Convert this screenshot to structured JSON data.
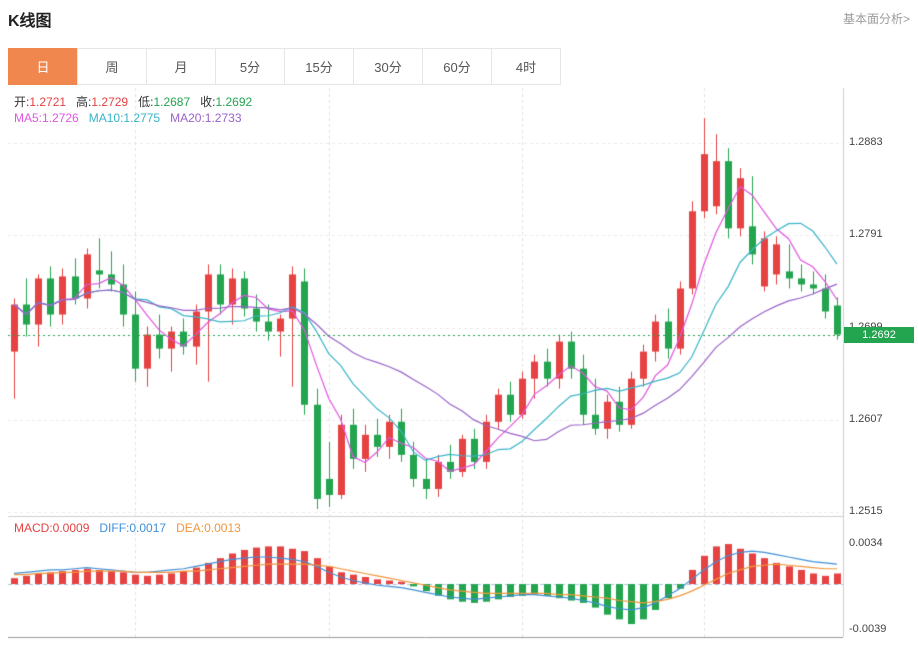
{
  "header": {
    "title": "K线图",
    "link": "基本面分析>"
  },
  "tabs": {
    "active_index": 0,
    "items": [
      {
        "label": "日",
        "name": "tab-day"
      },
      {
        "label": "周",
        "name": "tab-week"
      },
      {
        "label": "月",
        "name": "tab-month"
      },
      {
        "label": "5分",
        "name": "tab-5min"
      },
      {
        "label": "15分",
        "name": "tab-15min"
      },
      {
        "label": "30分",
        "name": "tab-30min"
      },
      {
        "label": "60分",
        "name": "tab-60min"
      },
      {
        "label": "4时",
        "name": "tab-4hour"
      }
    ]
  },
  "info": {
    "open_label": "开:",
    "open": "1.2721",
    "high_label": "高:",
    "high": "1.2729",
    "low_label": "低:",
    "low": "1.2687",
    "close_label": "收:",
    "close": "1.2692",
    "ma5_label": "MA5:",
    "ma5": "1.2726",
    "ma10_label": "MA10:",
    "ma10": "1.2775",
    "ma20_label": "MA20:",
    "ma20": "1.2733",
    "macd_label": "MACD:",
    "macd": "0.0009",
    "diff_label": "DIFF:",
    "diff": "0.0017",
    "dea_label": "DEA:",
    "dea": "0.0013"
  },
  "colors": {
    "up": "#e64242",
    "down": "#23a44f",
    "ma5": "#e056e0",
    "ma10": "#3ab4c8",
    "ma20": "#9a63c8",
    "diff": "#4090d8",
    "dea": "#f0973c",
    "tab_active": "#f0874f",
    "grid": "#eaeaea",
    "vgrid": "#e2e2e2",
    "zero_line": "#a9c9e6",
    "border": "#cfcfcf"
  },
  "chart_data": [
    {
      "type": "candlestick",
      "title": "K线图",
      "period": "日",
      "price_axis": {
        "min": 1.2511,
        "max": 1.2938,
        "ticks": [
          1.2883,
          1.2791,
          1.2699,
          1.2607,
          1.2515
        ],
        "last_price": 1.2692,
        "last_price_label": "1.2692"
      },
      "ohlc_display": {
        "open": 1.2721,
        "high": 1.2729,
        "low": 1.2687,
        "close": 1.2692
      },
      "ma_display": {
        "MA5": 1.2726,
        "MA10": 1.2775,
        "MA20": 1.2733
      },
      "ma_overlays": [
        {
          "name": "MA5",
          "period": 5,
          "color_key": "ma5"
        },
        {
          "name": "MA10",
          "period": 10,
          "color_key": "ma10"
        },
        {
          "name": "MA20",
          "period": 20,
          "color_key": "ma20"
        }
      ],
      "grid_indices": [
        10,
        26,
        42,
        57
      ],
      "candles": [
        [
          1.2675,
          1.2728,
          1.2628,
          1.2722
        ],
        [
          1.2722,
          1.2748,
          1.269,
          1.2702
        ],
        [
          1.2702,
          1.2752,
          1.268,
          1.2748
        ],
        [
          1.2748,
          1.276,
          1.27,
          1.2712
        ],
        [
          1.2712,
          1.2758,
          1.2702,
          1.275
        ],
        [
          1.275,
          1.2768,
          1.2722,
          1.2728
        ],
        [
          1.2728,
          1.2778,
          1.2718,
          1.2772
        ],
        [
          1.2756,
          1.2788,
          1.2738,
          1.2752
        ],
        [
          1.2752,
          1.2775,
          1.2735,
          1.2742
        ],
        [
          1.2742,
          1.2762,
          1.27,
          1.2712
        ],
        [
          1.2712,
          1.2735,
          1.2645,
          1.2658
        ],
        [
          1.2658,
          1.27,
          1.264,
          1.2692
        ],
        [
          1.2692,
          1.2712,
          1.2668,
          1.2678
        ],
        [
          1.2678,
          1.27,
          1.2655,
          1.2695
        ],
        [
          1.2695,
          1.2708,
          1.2672,
          1.268
        ],
        [
          1.268,
          1.2722,
          1.2662,
          1.2715
        ],
        [
          1.2715,
          1.2762,
          1.2645,
          1.2752
        ],
        [
          1.2752,
          1.2762,
          1.2712,
          1.2722
        ],
        [
          1.2722,
          1.2758,
          1.2702,
          1.2748
        ],
        [
          1.2748,
          1.2755,
          1.271,
          1.2718
        ],
        [
          1.2718,
          1.2732,
          1.2695,
          1.2705
        ],
        [
          1.2705,
          1.2722,
          1.2686,
          1.2695
        ],
        [
          1.2695,
          1.2712,
          1.267,
          1.2708
        ],
        [
          1.2708,
          1.276,
          1.264,
          1.2752
        ],
        [
          1.2745,
          1.2758,
          1.2612,
          1.2622
        ],
        [
          1.2622,
          1.2638,
          1.2518,
          1.2528
        ],
        [
          1.2548,
          1.2585,
          1.252,
          1.2532
        ],
        [
          1.2532,
          1.2612,
          1.2528,
          1.2602
        ],
        [
          1.2602,
          1.2618,
          1.2558,
          1.2568
        ],
        [
          1.2568,
          1.2602,
          1.2555,
          1.2592
        ],
        [
          1.2592,
          1.2608,
          1.257,
          1.258
        ],
        [
          1.258,
          1.2612,
          1.2568,
          1.2605
        ],
        [
          1.2605,
          1.2618,
          1.2565,
          1.2572
        ],
        [
          1.2572,
          1.2585,
          1.254,
          1.2548
        ],
        [
          1.2548,
          1.2568,
          1.2528,
          1.2538
        ],
        [
          1.2538,
          1.2572,
          1.253,
          1.2565
        ],
        [
          1.2565,
          1.2582,
          1.2548,
          1.2555
        ],
        [
          1.2555,
          1.2592,
          1.255,
          1.2588
        ],
        [
          1.2588,
          1.2598,
          1.2558,
          1.2565
        ],
        [
          1.2565,
          1.2612,
          1.2558,
          1.2605
        ],
        [
          1.2605,
          1.2638,
          1.2598,
          1.2632
        ],
        [
          1.2632,
          1.2645,
          1.2605,
          1.2612
        ],
        [
          1.2612,
          1.2655,
          1.2608,
          1.2648
        ],
        [
          1.2648,
          1.2672,
          1.2628,
          1.2665
        ],
        [
          1.2665,
          1.2678,
          1.264,
          1.2648
        ],
        [
          1.2648,
          1.2692,
          1.2638,
          1.2685
        ],
        [
          1.2685,
          1.2695,
          1.2648,
          1.2658
        ],
        [
          1.2658,
          1.2672,
          1.2602,
          1.2612
        ],
        [
          1.2612,
          1.2648,
          1.2592,
          1.2598
        ],
        [
          1.2598,
          1.2632,
          1.2588,
          1.2625
        ],
        [
          1.2625,
          1.264,
          1.2595,
          1.2602
        ],
        [
          1.2602,
          1.2655,
          1.2598,
          1.2648
        ],
        [
          1.2648,
          1.2682,
          1.264,
          1.2675
        ],
        [
          1.2675,
          1.2712,
          1.2665,
          1.2705
        ],
        [
          1.2705,
          1.2718,
          1.2668,
          1.2678
        ],
        [
          1.2678,
          1.2745,
          1.2672,
          1.2738
        ],
        [
          1.2738,
          1.2825,
          1.2732,
          1.2815
        ],
        [
          1.2815,
          1.2908,
          1.2808,
          1.2872
        ],
        [
          1.282,
          1.2892,
          1.2812,
          1.2865
        ],
        [
          1.2865,
          1.2878,
          1.2788,
          1.2798
        ],
        [
          1.2798,
          1.2858,
          1.279,
          1.2848
        ],
        [
          1.28,
          1.285,
          1.2762,
          1.2772
        ],
        [
          1.274,
          1.2795,
          1.2735,
          1.2788
        ],
        [
          1.2752,
          1.279,
          1.2742,
          1.2782
        ],
        [
          1.2755,
          1.2782,
          1.2738,
          1.2748
        ],
        [
          1.2748,
          1.2762,
          1.2735,
          1.2742
        ],
        [
          1.2742,
          1.2755,
          1.2732,
          1.2738
        ],
        [
          1.2738,
          1.2752,
          1.2708,
          1.2715
        ],
        [
          1.2721,
          1.2729,
          1.2687,
          1.2692
        ]
      ]
    },
    {
      "type": "bar",
      "name": "MACD",
      "axis": {
        "min": -0.0045,
        "max": 0.0057,
        "ticks": [
          0.0034,
          -0.0039
        ]
      },
      "display": {
        "MACD": 0.0009,
        "DIFF": 0.0017,
        "DEA": 0.0013
      },
      "hist": [
        0.0005,
        0.0007,
        0.0009,
        0.001,
        0.0011,
        0.0012,
        0.0013,
        0.0012,
        0.0011,
        0.001,
        0.0008,
        0.0007,
        0.0008,
        0.0009,
        0.0011,
        0.0014,
        0.0018,
        0.0022,
        0.0026,
        0.0029,
        0.0031,
        0.0032,
        0.0032,
        0.003,
        0.0028,
        0.0022,
        0.0015,
        0.001,
        0.0008,
        0.0006,
        0.0004,
        0.0003,
        0.0002,
        -0.0002,
        -0.0006,
        -0.001,
        -0.0013,
        -0.0015,
        -0.0016,
        -0.0015,
        -0.0013,
        -0.0011,
        -0.001,
        -0.0009,
        -0.001,
        -0.0012,
        -0.0014,
        -0.0016,
        -0.002,
        -0.0026,
        -0.003,
        -0.0034,
        -0.003,
        -0.0022,
        -0.0012,
        -0.0004,
        0.0012,
        0.0024,
        0.0032,
        0.0034,
        0.003,
        0.0026,
        0.0022,
        0.0018,
        0.0015,
        0.0012,
        0.0009,
        0.0007,
        0.0009
      ],
      "series": [
        {
          "name": "DIFF",
          "color_key": "diff",
          "values": [
            0.0009,
            0.001,
            0.0011,
            0.0012,
            0.0012,
            0.0013,
            0.0014,
            0.0013,
            0.0012,
            0.0011,
            0.001,
            0.001,
            0.0011,
            0.0012,
            0.0013,
            0.0015,
            0.0017,
            0.0019,
            0.0021,
            0.0022,
            0.0023,
            0.0023,
            0.0022,
            0.0021,
            0.0019,
            0.0015,
            0.001,
            0.0006,
            0.0003,
            0.0001,
            -0.0001,
            -0.0002,
            -0.0003,
            -0.0005,
            -0.0007,
            -0.0009,
            -0.0011,
            -0.0012,
            -0.0013,
            -0.0012,
            -0.0011,
            -0.001,
            -0.0009,
            -0.0009,
            -0.001,
            -0.0011,
            -0.0012,
            -0.0014,
            -0.0016,
            -0.0019,
            -0.0021,
            -0.0022,
            -0.002,
            -0.0016,
            -0.001,
            -0.0004,
            0.0004,
            0.0012,
            0.0019,
            0.0024,
            0.0027,
            0.0028,
            0.0027,
            0.0025,
            0.0023,
            0.0021,
            0.0019,
            0.0018,
            0.0017
          ]
        },
        {
          "name": "DEA",
          "color_key": "dea",
          "values": [
            0.0008,
            0.0008,
            0.0009,
            0.0009,
            0.001,
            0.001,
            0.0011,
            0.0011,
            0.0011,
            0.0011,
            0.001,
            0.001,
            0.001,
            0.001,
            0.0011,
            0.0011,
            0.0012,
            0.0013,
            0.0014,
            0.0015,
            0.0016,
            0.0017,
            0.0017,
            0.0017,
            0.0017,
            0.0016,
            0.0015,
            0.0013,
            0.0011,
            0.0009,
            0.0007,
            0.0005,
            0.0003,
            0.0001,
            -0.0001,
            -0.0003,
            -0.0005,
            -0.0006,
            -0.0007,
            -0.0008,
            -0.0008,
            -0.0008,
            -0.0008,
            -0.0008,
            -0.0008,
            -0.0009,
            -0.0009,
            -0.001,
            -0.0011,
            -0.0012,
            -0.0014,
            -0.0015,
            -0.0016,
            -0.0015,
            -0.0013,
            -0.001,
            -0.0006,
            -0.0001,
            0.0004,
            0.0009,
            0.0012,
            0.0015,
            0.0016,
            0.0017,
            0.0016,
            0.0015,
            0.0014,
            0.0013,
            0.0013
          ]
        }
      ]
    }
  ]
}
